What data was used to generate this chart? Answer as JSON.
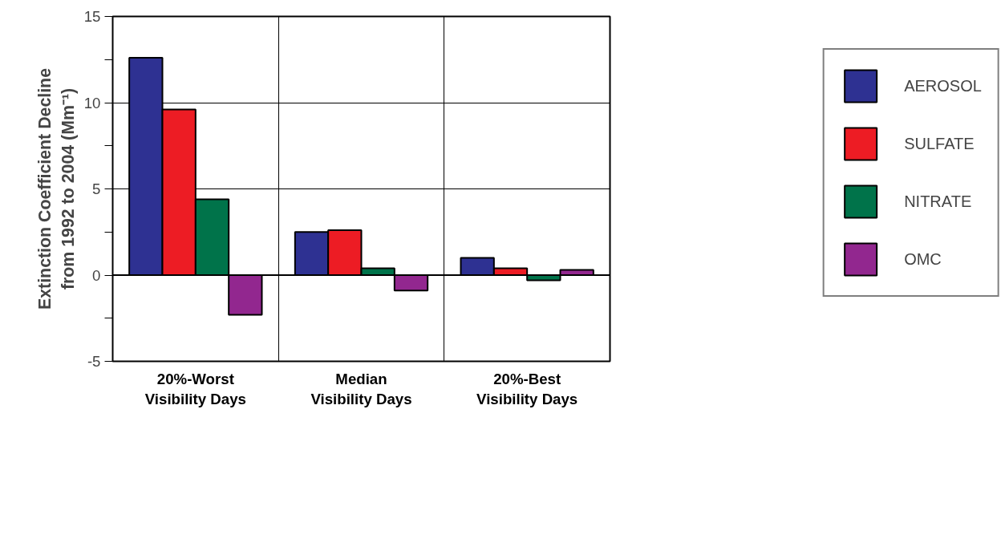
{
  "chart_data": {
    "type": "bar",
    "ylabel": "Extinction Coefficient Decline\nfrom 1992 to 2004 (Mm⁻¹)",
    "categories": [
      "20%-Worst\nVisibility Days",
      "Median\nVisibility Days",
      "20%-Best\nVisibility Days"
    ],
    "series": [
      {
        "name": "AEROSOL",
        "color": "#2e3192",
        "values": [
          12.6,
          2.5,
          1.0
        ]
      },
      {
        "name": "SULFATE",
        "color": "#ed1c24",
        "values": [
          9.6,
          2.6,
          0.4
        ]
      },
      {
        "name": "NITRATE",
        "color": "#00734a",
        "values": [
          4.4,
          0.4,
          -0.3
        ]
      },
      {
        "name": "OMC",
        "color": "#92278f",
        "values": [
          -2.3,
          -0.9,
          0.3
        ]
      }
    ],
    "ylim": [
      -5,
      15
    ],
    "yticks": [
      -5,
      {
        "value": -2.5,
        "label": null
      },
      0,
      {
        "value": 2.5,
        "label": null
      },
      5,
      {
        "value": 7.5,
        "label": null
      },
      10,
      {
        "value": 12.5,
        "label": null
      },
      15
    ],
    "grid": true,
    "legend": "right"
  }
}
